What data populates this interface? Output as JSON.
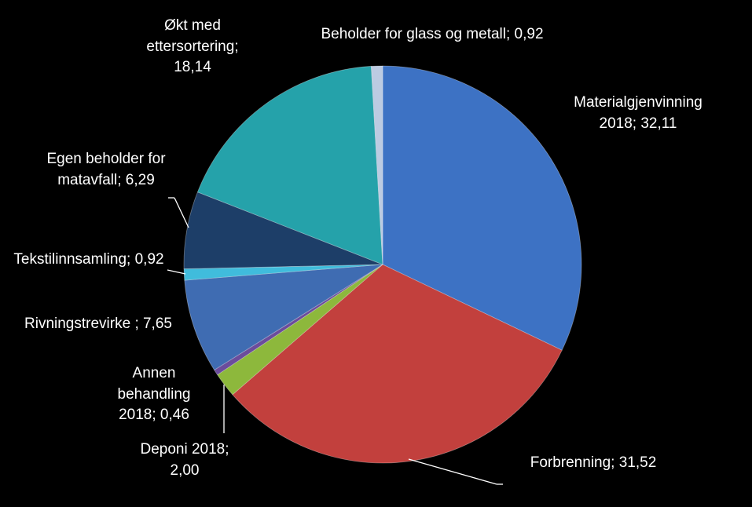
{
  "chart_data": {
    "type": "pie",
    "categories": [
      "Materialgjenvinning 2018;",
      "Forbrenning;",
      "Deponi 2018;",
      "Annen behandling 2018;",
      "Rivningstrevirke",
      "Tekstilinnsamling;",
      "Egen beholder for matavfall;",
      "Økt med ettersortering;",
      "Beholder for glass og metall;"
    ],
    "values": [
      32.11,
      31.52,
      2.0,
      0.46,
      7.65,
      0.92,
      6.29,
      18.14,
      0.92
    ],
    "value_labels": [
      "32,11",
      "31,52",
      "2,00",
      "0,46",
      "; 7,65",
      "0,92",
      "6,29",
      "18,14",
      "0,92"
    ],
    "colors": [
      "#3d72c4",
      "#c2403d",
      "#8db83c",
      "#6b4c9c",
      "#3f6cb2",
      "#40bcdc",
      "#1d3e68",
      "#25a2aa",
      "#bccbe2"
    ]
  }
}
